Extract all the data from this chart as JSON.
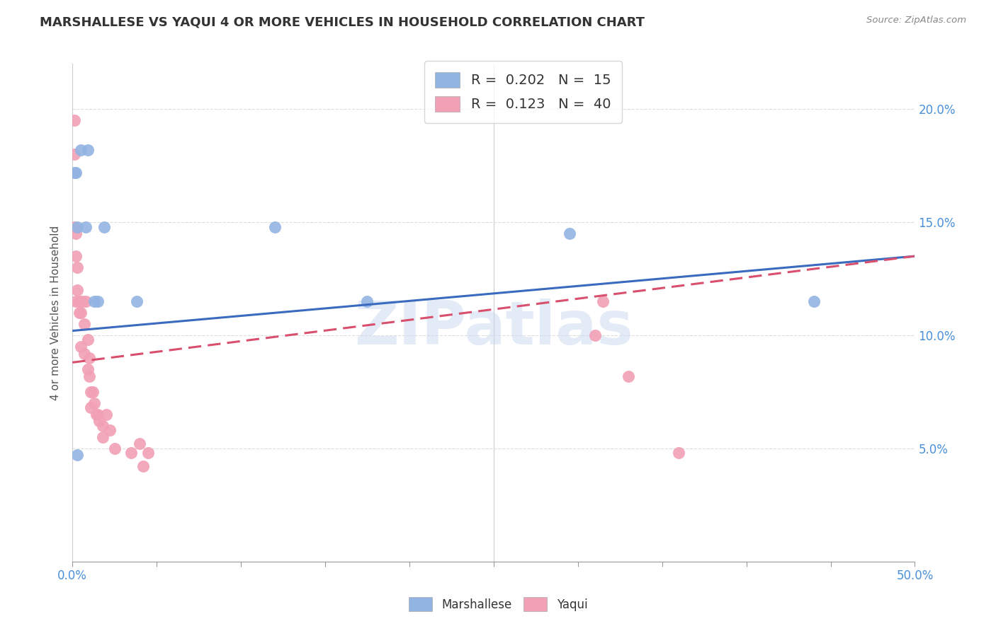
{
  "title": "MARSHALLESE VS YAQUI 4 OR MORE VEHICLES IN HOUSEHOLD CORRELATION CHART",
  "source": "Source: ZipAtlas.com",
  "ylabel": "4 or more Vehicles in Household",
  "xlim": [
    0.0,
    0.5
  ],
  "ylim": [
    0.0,
    0.22
  ],
  "marshallese_R": "0.202",
  "marshallese_N": "15",
  "yaqui_R": "0.123",
  "yaqui_N": "40",
  "marshallese_color": "#92b4e3",
  "yaqui_color": "#f2a0b5",
  "marshallese_line_color": "#3a6bbf",
  "yaqui_line_color": "#d94f6e",
  "background_color": "#ffffff",
  "grid_color": "#dddddd",
  "watermark": "ZIPatlas",
  "marshallese_x": [
    0.001,
    0.002,
    0.003,
    0.005,
    0.008,
    0.009,
    0.013,
    0.015,
    0.019,
    0.038,
    0.12,
    0.175,
    0.295,
    0.44,
    0.003
  ],
  "marshallese_y": [
    0.172,
    0.172,
    0.148,
    0.182,
    0.148,
    0.182,
    0.115,
    0.115,
    0.148,
    0.115,
    0.148,
    0.115,
    0.145,
    0.115,
    0.047
  ],
  "yaqui_x": [
    0.001,
    0.001,
    0.001,
    0.002,
    0.002,
    0.002,
    0.003,
    0.003,
    0.004,
    0.004,
    0.005,
    0.005,
    0.006,
    0.007,
    0.007,
    0.008,
    0.009,
    0.009,
    0.01,
    0.01,
    0.011,
    0.011,
    0.012,
    0.013,
    0.014,
    0.015,
    0.016,
    0.018,
    0.018,
    0.02,
    0.022,
    0.025,
    0.035,
    0.04,
    0.042,
    0.045,
    0.31,
    0.315,
    0.33,
    0.36
  ],
  "yaqui_y": [
    0.195,
    0.18,
    0.148,
    0.145,
    0.135,
    0.115,
    0.13,
    0.12,
    0.115,
    0.11,
    0.11,
    0.095,
    0.115,
    0.105,
    0.092,
    0.115,
    0.098,
    0.085,
    0.09,
    0.082,
    0.075,
    0.068,
    0.075,
    0.07,
    0.065,
    0.065,
    0.062,
    0.06,
    0.055,
    0.065,
    0.058,
    0.05,
    0.048,
    0.052,
    0.042,
    0.048,
    0.1,
    0.115,
    0.082,
    0.048
  ],
  "blue_line_x0": 0.0,
  "blue_line_y0": 0.102,
  "blue_line_x1": 0.5,
  "blue_line_y1": 0.135,
  "pink_line_x0": 0.0,
  "pink_line_y0": 0.088,
  "pink_line_x1": 0.5,
  "pink_line_y1": 0.135
}
